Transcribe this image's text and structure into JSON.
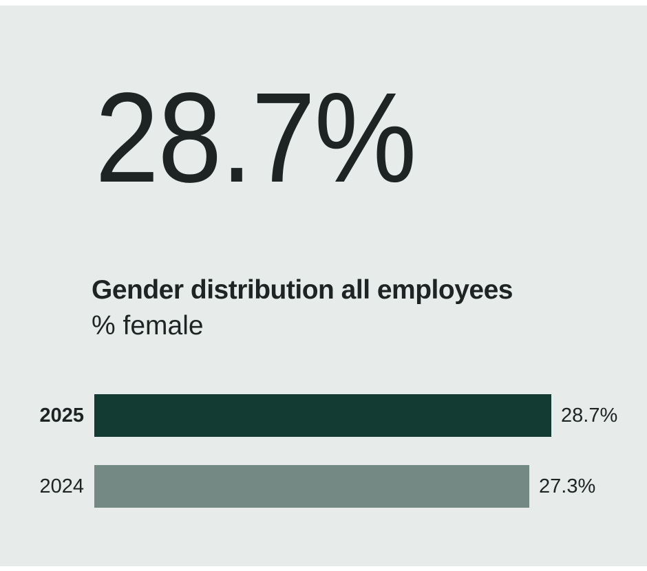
{
  "headline": {
    "value": "28.7%"
  },
  "chart_data": {
    "type": "bar",
    "orientation": "horizontal",
    "title": "Gender distribution all employees",
    "subtitle": "% female",
    "categories": [
      "2025",
      "2024"
    ],
    "values": [
      28.7,
      27.3
    ],
    "value_labels": [
      "28.7%",
      "27.3%"
    ],
    "axis_min": 0,
    "axis_max": 28.7,
    "grid": false,
    "legend": false,
    "highlight_category": "2025",
    "bar_colors": [
      "#133a33",
      "#748983"
    ]
  },
  "colors": {
    "page_margin": "#ffffff",
    "background": "#e7ebea",
    "text": "#1d2423",
    "bar_current_year": "#133a33",
    "bar_previous_year": "#748983"
  }
}
